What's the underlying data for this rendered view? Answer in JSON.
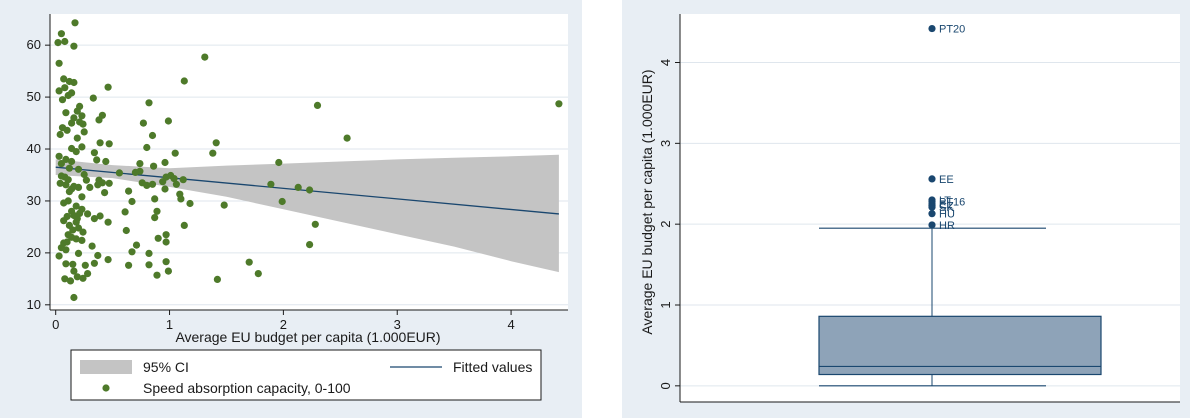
{
  "colors": {
    "panel_bg": "#e8eef4",
    "plot_bg": "#ffffff",
    "grid": "#dfe6ed",
    "point": "#4e7a2a",
    "fit_line": "#1a476f",
    "ci_band": "#c4c4c4",
    "box_fill": "#8ea3b8",
    "box_line": "#1a476f",
    "outlier": "#1a476f"
  },
  "chart_data": [
    {
      "type": "scatter",
      "xlabel": "Average EU budget per capita (1.000EUR)",
      "ylabel": "",
      "xlim": [
        -0.05,
        4.5
      ],
      "ylim": [
        9,
        66
      ],
      "xticks": [
        "0",
        "1",
        "2",
        "3",
        "4"
      ],
      "yticks": [
        "10",
        "20",
        "30",
        "40",
        "50",
        "60"
      ],
      "grid": true,
      "legend_position": "bottom",
      "legend": {
        "ci_label": "95% CI",
        "fit_label": "Fitted values",
        "scatter_label": "Speed absorption capacity, 0-100"
      },
      "fitted_line": {
        "x": [
          0,
          4.42
        ],
        "y": [
          36.5,
          27.5
        ]
      },
      "ci_band": {
        "x": [
          0,
          0.5,
          1.0,
          1.5,
          2.0,
          2.5,
          3.0,
          3.5,
          4.0,
          4.42
        ],
        "upper": [
          38.0,
          36.9,
          36.3,
          36.8,
          37.2,
          37.6,
          38.0,
          38.3,
          38.6,
          38.9
        ],
        "lower": [
          35.0,
          34.4,
          32.7,
          30.8,
          28.4,
          26.0,
          23.6,
          21.2,
          18.4,
          16.3
        ]
      },
      "points": [
        [
          0.02,
          60.5
        ],
        [
          0.05,
          62.2
        ],
        [
          0.08,
          60.7
        ],
        [
          0.17,
          64.3
        ],
        [
          0.16,
          59.8
        ],
        [
          0.03,
          56.5
        ],
        [
          0.07,
          53.5
        ],
        [
          0.12,
          53.0
        ],
        [
          0.08,
          51.8
        ],
        [
          0.16,
          52.8
        ],
        [
          0.03,
          51.2
        ],
        [
          0.11,
          50.3
        ],
        [
          0.06,
          49.5
        ],
        [
          0.14,
          50.8
        ],
        [
          0.21,
          48.2
        ],
        [
          0.19,
          47.3
        ],
        [
          0.09,
          47.0
        ],
        [
          0.23,
          46.4
        ],
        [
          0.16,
          46.0
        ],
        [
          0.21,
          45.2
        ],
        [
          0.14,
          45.0
        ],
        [
          0.24,
          44.8
        ],
        [
          0.06,
          44.1
        ],
        [
          0.1,
          43.6
        ],
        [
          0.25,
          43.3
        ],
        [
          0.04,
          42.8
        ],
        [
          0.19,
          42.1
        ],
        [
          0.14,
          40.1
        ],
        [
          0.18,
          39.5
        ],
        [
          0.23,
          40.4
        ],
        [
          0.03,
          38.6
        ],
        [
          0.09,
          38.0
        ],
        [
          0.14,
          37.6
        ],
        [
          0.05,
          37.2
        ],
        [
          0.12,
          36.3
        ],
        [
          0.2,
          36.1
        ],
        [
          0.25,
          35.1
        ],
        [
          0.05,
          34.8
        ],
        [
          0.08,
          34.6
        ],
        [
          0.11,
          34.1
        ],
        [
          0.27,
          34.0
        ],
        [
          0.04,
          33.4
        ],
        [
          0.09,
          33.1
        ],
        [
          0.16,
          32.8
        ],
        [
          0.2,
          32.6
        ],
        [
          0.14,
          32.3
        ],
        [
          0.12,
          31.8
        ],
        [
          0.23,
          30.8
        ],
        [
          0.11,
          30.0
        ],
        [
          0.07,
          29.6
        ],
        [
          0.18,
          29.0
        ],
        [
          0.23,
          28.4
        ],
        [
          0.14,
          28.0
        ],
        [
          0.21,
          27.6
        ],
        [
          0.28,
          27.5
        ],
        [
          0.16,
          27.2
        ],
        [
          0.1,
          27.0
        ],
        [
          0.19,
          26.6
        ],
        [
          0.07,
          26.2
        ],
        [
          0.18,
          25.9
        ],
        [
          0.12,
          25.3
        ],
        [
          0.2,
          24.8
        ],
        [
          0.15,
          24.4
        ],
        [
          0.24,
          24.0
        ],
        [
          0.11,
          23.5
        ],
        [
          0.14,
          23.0
        ],
        [
          0.18,
          22.7
        ],
        [
          0.1,
          22.1
        ],
        [
          0.23,
          22.4
        ],
        [
          0.07,
          21.9
        ],
        [
          0.05,
          21.0
        ],
        [
          0.09,
          20.6
        ],
        [
          0.2,
          19.9
        ],
        [
          0.03,
          19.4
        ],
        [
          0.09,
          17.9
        ],
        [
          0.15,
          17.8
        ],
        [
          0.26,
          17.6
        ],
        [
          0.16,
          16.5
        ],
        [
          0.28,
          16.0
        ],
        [
          0.19,
          15.4
        ],
        [
          0.24,
          15.1
        ],
        [
          0.08,
          15.0
        ],
        [
          0.13,
          14.6
        ],
        [
          0.16,
          11.4
        ],
        [
          0.33,
          49.8
        ],
        [
          0.46,
          51.9
        ],
        [
          0.41,
          46.5
        ],
        [
          0.38,
          45.6
        ],
        [
          0.47,
          41.0
        ],
        [
          0.39,
          41.2
        ],
        [
          0.34,
          39.3
        ],
        [
          0.36,
          37.9
        ],
        [
          0.44,
          37.6
        ],
        [
          0.38,
          34.0
        ],
        [
          0.41,
          33.5
        ],
        [
          0.47,
          33.4
        ],
        [
          0.37,
          33.1
        ],
        [
          0.3,
          32.6
        ],
        [
          0.43,
          31.6
        ],
        [
          0.39,
          27.1
        ],
        [
          0.34,
          26.6
        ],
        [
          0.46,
          25.9
        ],
        [
          0.32,
          21.3
        ],
        [
          0.37,
          19.5
        ],
        [
          0.34,
          18.0
        ],
        [
          0.46,
          18.7
        ],
        [
          0.56,
          35.4
        ],
        [
          0.61,
          27.9
        ],
        [
          0.64,
          31.9
        ],
        [
          0.67,
          29.9
        ],
        [
          0.7,
          35.5
        ],
        [
          0.71,
          21.5
        ],
        [
          0.67,
          20.2
        ],
        [
          0.62,
          24.3
        ],
        [
          0.64,
          17.6
        ],
        [
          0.77,
          45.0
        ],
        [
          0.74,
          37.2
        ],
        [
          0.74,
          35.7
        ],
        [
          0.76,
          33.5
        ],
        [
          0.82,
          48.9
        ],
        [
          0.85,
          42.6
        ],
        [
          0.8,
          40.3
        ],
        [
          0.86,
          36.7
        ],
        [
          0.8,
          33.0
        ],
        [
          0.85,
          33.2
        ],
        [
          0.87,
          30.4
        ],
        [
          0.89,
          28.0
        ],
        [
          0.87,
          26.8
        ],
        [
          0.9,
          22.8
        ],
        [
          0.82,
          19.9
        ],
        [
          0.82,
          17.7
        ],
        [
          0.89,
          15.7
        ],
        [
          0.99,
          45.4
        ],
        [
          0.96,
          37.4
        ],
        [
          0.97,
          34.6
        ],
        [
          0.94,
          33.7
        ],
        [
          0.96,
          32.3
        ],
        [
          0.97,
          23.5
        ],
        [
          0.97,
          22.1
        ],
        [
          0.97,
          18.3
        ],
        [
          0.99,
          16.5
        ],
        [
          1.05,
          39.2
        ],
        [
          1.01,
          34.9
        ],
        [
          1.04,
          34.3
        ],
        [
          1.06,
          33.2
        ],
        [
          1.09,
          31.3
        ],
        [
          1.12,
          34.1
        ],
        [
          1.1,
          30.4
        ],
        [
          1.13,
          53.1
        ],
        [
          1.18,
          29.5
        ],
        [
          1.13,
          25.3
        ],
        [
          1.31,
          57.7
        ],
        [
          1.41,
          41.2
        ],
        [
          1.38,
          39.2
        ],
        [
          1.42,
          14.9
        ],
        [
          1.48,
          29.2
        ],
        [
          1.7,
          18.2
        ],
        [
          1.78,
          16.0
        ],
        [
          1.89,
          33.2
        ],
        [
          1.96,
          37.4
        ],
        [
          1.99,
          29.9
        ],
        [
          2.13,
          32.6
        ],
        [
          2.23,
          32.1
        ],
        [
          2.23,
          21.6
        ],
        [
          2.28,
          25.5
        ],
        [
          2.3,
          48.4
        ],
        [
          2.56,
          42.1
        ],
        [
          4.42,
          48.7
        ]
      ]
    },
    {
      "type": "box",
      "ylabel": "Average EU budget per capita (1.000EUR)",
      "ylim": [
        -0.2,
        4.6
      ],
      "yticks": [
        "0",
        "1",
        "2",
        "3",
        "4"
      ],
      "grid": true,
      "box": {
        "lower_whisker": 0.0,
        "q1": 0.14,
        "median": 0.24,
        "q3": 0.86,
        "upper_whisker": 1.95
      },
      "outliers": [
        {
          "label": "PT20",
          "value": 4.42
        },
        {
          "label": "EE",
          "value": 2.56
        },
        {
          "label": "LT",
          "value": 2.3
        },
        {
          "label": "PT16",
          "value": 2.28
        },
        {
          "label": "EL",
          "value": 2.25
        },
        {
          "label": "CZ",
          "value": 2.23
        },
        {
          "label": "SK",
          "value": 2.21
        },
        {
          "label": "HU",
          "value": 2.13
        },
        {
          "label": "HR",
          "value": 1.99
        }
      ]
    }
  ]
}
